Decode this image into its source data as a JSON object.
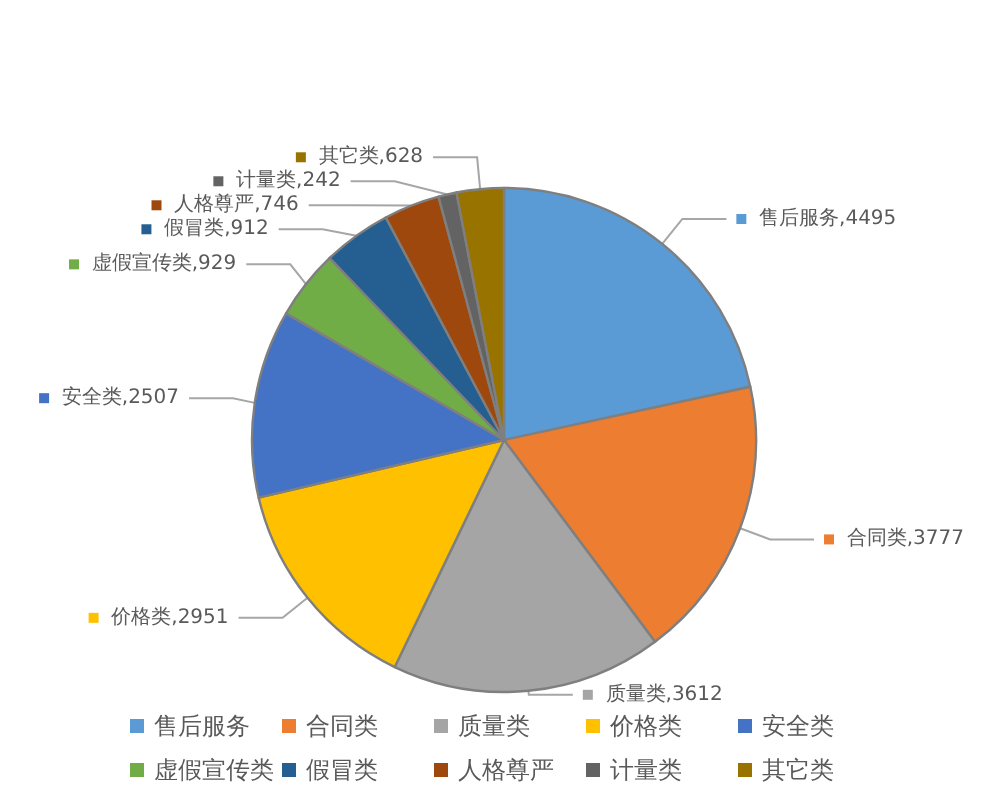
{
  "chart_data": {
    "type": "pie",
    "categories": [
      "售后服务",
      "合同类",
      "质量类",
      "价格类",
      "安全类",
      "虚假宣传类",
      "假冒类",
      "人格尊严",
      "计量类",
      "其它类"
    ],
    "values": [
      4495,
      3777,
      3612,
      2951,
      2507,
      929,
      912,
      746,
      242,
      628
    ],
    "value_labels": [
      "售后服务,4495",
      "合同类,3777",
      "质量类,3612",
      "价格类,2951",
      "安全类,2507",
      "虚假宣传类,929",
      "假冒类,912",
      "人格尊严,746",
      "计量类,242",
      "其它类,628"
    ],
    "colors": [
      "#5b9bd5",
      "#ed7d31",
      "#a5a5a5",
      "#ffc000",
      "#4472c4",
      "#70ad47",
      "#255e91",
      "#9e480e",
      "#636363",
      "#997300"
    ],
    "legend": "bottom"
  }
}
